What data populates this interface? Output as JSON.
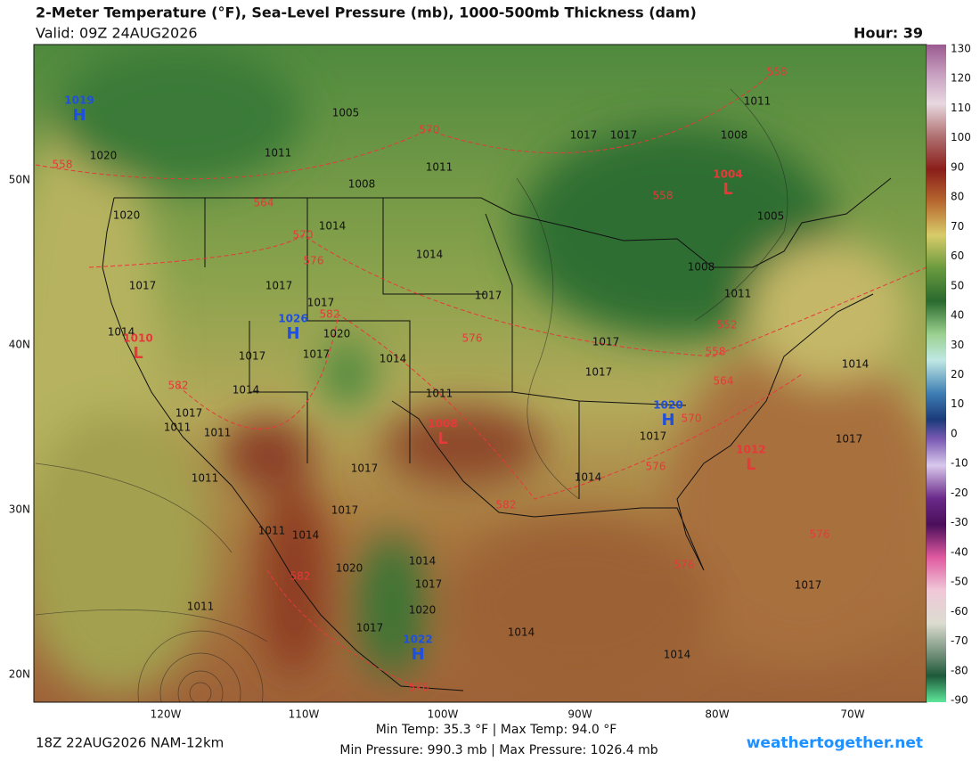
{
  "header": {
    "title": "2-Meter Temperature (°F), Sea-Level Pressure (mb), 1000-500mb Thickness (dam)",
    "valid": "Valid: 09Z 24AUG2026",
    "hour": "Hour: 39"
  },
  "colorbar": {
    "ticks": [
      130,
      120,
      110,
      100,
      90,
      80,
      70,
      60,
      50,
      40,
      30,
      20,
      10,
      0,
      -10,
      -20,
      -30,
      -40,
      -50,
      -60,
      -70,
      -80,
      -90
    ]
  },
  "latitude_labels": [
    "50N",
    "40N",
    "30N",
    "20N"
  ],
  "longitude_labels": [
    "120W",
    "110W",
    "100W",
    "90W",
    "80W",
    "70W"
  ],
  "isobar_labels": [
    "1005",
    "1011",
    "1008",
    "1011",
    "1014",
    "1014",
    "1017",
    "1017",
    "1008",
    "1011",
    "1005",
    "1008",
    "1011",
    "1017",
    "1017",
    "1017",
    "1017",
    "1017",
    "1020",
    "1014",
    "1014",
    "1017",
    "1014",
    "1011",
    "1017",
    "1017",
    "1017",
    "1011",
    "1011",
    "1011",
    "1017",
    "1014",
    "1017",
    "1014",
    "1017",
    "1017",
    "1014",
    "1011",
    "1020",
    "1014",
    "1017",
    "1020",
    "1017",
    "1011",
    "1014",
    "1014",
    "1017",
    "1020",
    "1020"
  ],
  "thickness_labels": [
    "558",
    "558",
    "570",
    "564",
    "558",
    "570",
    "576",
    "582",
    "576",
    "552",
    "558",
    "564",
    "570",
    "582",
    "576",
    "582",
    "582",
    "576",
    "576",
    "576"
  ],
  "pressure_centers": [
    {
      "symbol": "H",
      "value": "1019"
    },
    {
      "symbol": "H",
      "value": "1026"
    },
    {
      "symbol": "L",
      "value": "1010"
    },
    {
      "symbol": "L",
      "value": "1008"
    },
    {
      "symbol": "L",
      "value": "1004"
    },
    {
      "symbol": "H",
      "value": "1020"
    },
    {
      "symbol": "L",
      "value": "1012"
    },
    {
      "symbol": "H",
      "value": "1022"
    }
  ],
  "footer": {
    "run": "18Z 22AUG2026 NAM-12km",
    "temperature_range": "Min Temp:  35.3 °F | Max Temp:  94.0 °F",
    "pressure_range": "Min Pressure: 990.3 mb | Max Pressure: 1026.4 mb",
    "site": "weathertogether.net"
  }
}
